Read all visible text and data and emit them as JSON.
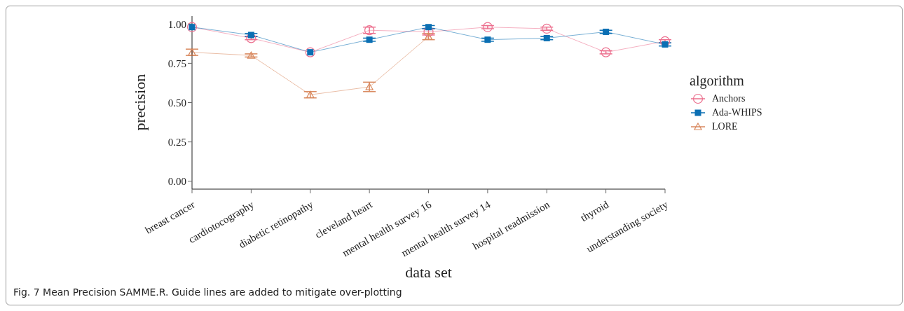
{
  "chart_data": {
    "type": "line",
    "xlabel": "data set",
    "ylabel": "precision",
    "legend_title": "algorithm",
    "legend": "right",
    "grid": false,
    "categories": [
      "breast cancer",
      "cardiotocography",
      "diabetic retinopathy",
      "cleveland heart",
      "mental health survey 16",
      "mental health survey 14",
      "hospital readmission",
      "thyroid",
      "understanding society"
    ],
    "ylim": [
      -0.05,
      1.05
    ],
    "yticks": [
      {
        "value": 0,
        "label": "0.00"
      },
      {
        "value": 0.25,
        "label": "0.25"
      },
      {
        "value": 0.5,
        "label": "0.50"
      },
      {
        "value": 0.75,
        "label": "0.75"
      },
      {
        "value": 1,
        "label": "1.00"
      }
    ],
    "series": [
      {
        "name": "Anchors",
        "color": "#ec6f8e",
        "marker": "circle",
        "values": [
          0.98,
          0.91,
          0.82,
          0.96,
          0.95,
          0.98,
          0.97,
          0.82,
          0.89
        ],
        "errors": [
          null,
          0.01,
          null,
          0.02,
          0.02,
          0.01,
          0.01,
          0.01,
          0.01
        ]
      },
      {
        "name": "Ada-WHIPS",
        "color": "#0b6fb3",
        "marker": "square",
        "values": [
          0.98,
          0.93,
          0.82,
          0.9,
          0.98,
          0.9,
          0.91,
          0.95,
          0.87
        ],
        "errors": [
          null,
          0.01,
          null,
          0.01,
          0.01,
          0.01,
          0.01,
          0.01,
          0.01
        ]
      },
      {
        "name": "LORE",
        "color": "#d9895f",
        "marker": "triangle",
        "values": [
          0.82,
          0.8,
          0.55,
          0.6,
          0.92,
          null,
          null,
          null,
          null
        ],
        "errors": [
          0.02,
          0.01,
          0.02,
          0.03,
          0.02,
          null,
          null,
          null,
          null
        ]
      }
    ],
    "annotations": [
      "Fig. 7 Mean Precision SAMME.R. Guide lines are added to mitigate over-plotting"
    ]
  }
}
